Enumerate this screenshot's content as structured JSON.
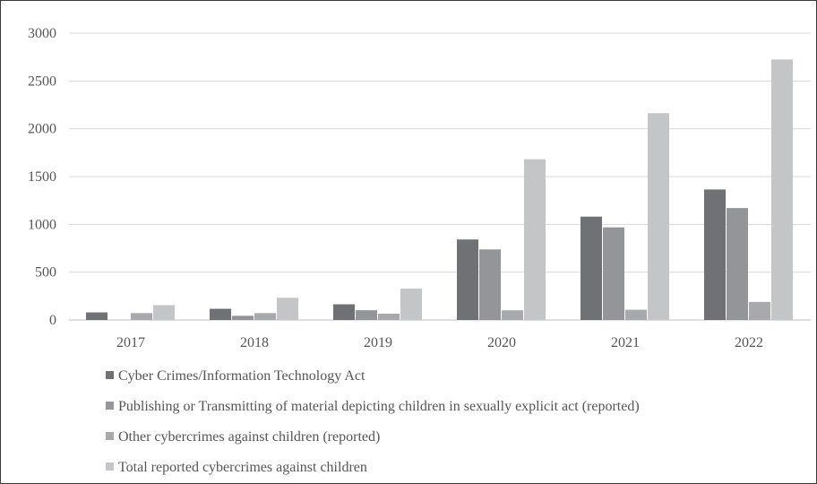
{
  "chart_data": {
    "type": "bar",
    "categories": [
      "2017",
      "2018",
      "2019",
      "2020",
      "2021",
      "2022"
    ],
    "ylim": [
      0,
      3000
    ],
    "yticks": [
      0,
      500,
      1000,
      1500,
      2000,
      2500,
      3000
    ],
    "grid": true,
    "legend_position": "bottom",
    "series": [
      {
        "name": "Cyber Crimes/Information Technology Act",
        "color": "#707174",
        "values": [
          79,
          117,
          164,
          842,
          1081,
          1365
        ]
      },
      {
        "name": "Publishing or Transmitting of material depicting children in sexually explicit act (reported)",
        "color": "#939598",
        "values": [
          null,
          44,
          102,
          738,
          969,
          1171
        ]
      },
      {
        "name": "Other cybercrimes against children (reported)",
        "color": "#a7a9ac",
        "values": [
          72,
          72,
          66,
          101,
          107,
          189
        ]
      },
      {
        "name": "Total reported cybercrimes against children",
        "color": "#c4c5c7",
        "values": [
          155,
          232,
          328,
          1681,
          2163,
          2725
        ]
      }
    ]
  }
}
